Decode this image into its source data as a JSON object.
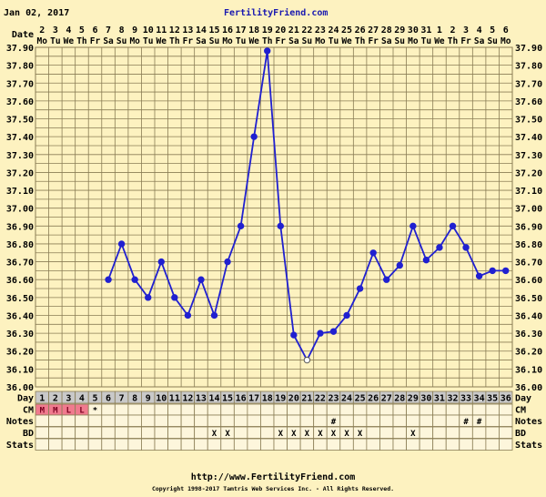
{
  "header": {
    "date": "Jan 02, 2017",
    "site": "FertilityFriend.com"
  },
  "footer": {
    "url": "http://www.FertilityFriend.com",
    "copyright": "Copyright 1998-2017 Tamtris Web Services Inc. - All Rights Reserved."
  },
  "labels": {
    "date": "Date",
    "day": "Day",
    "cm": "CM",
    "notes": "Notes",
    "bd": "BD",
    "stats": "Stats"
  },
  "colors": {
    "background": "#fdf2c0",
    "line": "#2020d0",
    "grid": "#8a7d55",
    "day_row": "#c9c9c9",
    "cm_menstrual": "#f07a8e",
    "cell": "#fdf6dc"
  },
  "chart_data": {
    "type": "line",
    "ylim": [
      36.0,
      37.9
    ],
    "grid": true,
    "y_ticks": [
      "37.90",
      "37.80",
      "37.70",
      "37.60",
      "37.50",
      "37.40",
      "37.30",
      "37.20",
      "37.10",
      "37.00",
      "36.90",
      "36.80",
      "36.70",
      "36.60",
      "36.50",
      "36.40",
      "36.30",
      "36.20",
      "36.10",
      "36.00"
    ],
    "dates": [
      "2",
      "3",
      "4",
      "5",
      "6",
      "7",
      "8",
      "9",
      "10",
      "11",
      "12",
      "13",
      "14",
      "15",
      "16",
      "17",
      "18",
      "19",
      "20",
      "21",
      "22",
      "23",
      "24",
      "25",
      "26",
      "27",
      "28",
      "29",
      "30",
      "31",
      "1",
      "2",
      "3",
      "4",
      "5",
      "6"
    ],
    "weekdays": [
      "Mo",
      "Tu",
      "We",
      "Th",
      "Fr",
      "Sa",
      "Su",
      "Mo",
      "Tu",
      "We",
      "Th",
      "Fr",
      "Sa",
      "Su",
      "Mo",
      "Tu",
      "We",
      "Th",
      "Fr",
      "Sa",
      "Su",
      "Mo",
      "Tu",
      "We",
      "Th",
      "Fr",
      "Sa",
      "Su",
      "Mo",
      "Tu",
      "We",
      "Th",
      "Fr",
      "Sa",
      "Su",
      "Mo"
    ],
    "days": [
      1,
      2,
      3,
      4,
      5,
      6,
      7,
      8,
      9,
      10,
      11,
      12,
      13,
      14,
      15,
      16,
      17,
      18,
      19,
      20,
      21,
      22,
      23,
      24,
      25,
      26,
      27,
      28,
      29,
      30,
      31,
      32,
      33,
      34,
      35,
      36
    ],
    "temperatures": [
      null,
      null,
      null,
      null,
      null,
      36.6,
      36.8,
      36.6,
      36.5,
      36.7,
      36.5,
      36.4,
      36.6,
      36.4,
      36.7,
      36.9,
      37.4,
      37.88,
      36.9,
      36.29,
      36.15,
      36.3,
      36.31,
      36.4,
      36.55,
      36.75,
      36.6,
      36.68,
      36.9,
      36.71,
      36.78,
      36.9,
      36.78,
      36.62,
      36.65,
      36.65
    ],
    "open_points": [
      21
    ],
    "cm": [
      "M",
      "M",
      "L",
      "L",
      "*",
      "",
      "",
      "",
      "",
      "",
      "",
      "",
      "",
      "",
      "",
      "",
      "",
      "",
      "",
      "",
      "",
      "",
      "",
      "",
      "",
      "",
      "",
      "",
      "",
      "",
      "",
      "",
      "",
      "",
      "",
      ""
    ],
    "notes": {
      "23": "#",
      "33": "#",
      "34": "#"
    },
    "bd": {
      "14": "X",
      "15": "X",
      "19": "X",
      "20": "X",
      "21": "X",
      "22": "X",
      "23": "X",
      "24": "X",
      "25": "X",
      "29": "X"
    }
  }
}
